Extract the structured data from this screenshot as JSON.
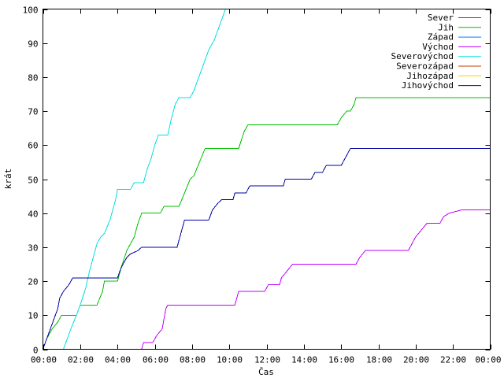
{
  "chart_data": {
    "type": "line",
    "title": "",
    "xlabel": "Čas",
    "ylabel": "krát",
    "xlim": [
      0,
      24
    ],
    "ylim": [
      0,
      100
    ],
    "grid": false,
    "legend_position": "top-right",
    "x_ticks": [
      {
        "value": 0,
        "label": "00:00"
      },
      {
        "value": 2,
        "label": "02:00"
      },
      {
        "value": 4,
        "label": "04:00"
      },
      {
        "value": 6,
        "label": "06:00"
      },
      {
        "value": 8,
        "label": "08:00"
      },
      {
        "value": 10,
        "label": "10:00"
      },
      {
        "value": 12,
        "label": "12:00"
      },
      {
        "value": 14,
        "label": "14:00"
      },
      {
        "value": 16,
        "label": "16:00"
      },
      {
        "value": 18,
        "label": "18:00"
      },
      {
        "value": 20,
        "label": "20:00"
      },
      {
        "value": 22,
        "label": "22:00"
      },
      {
        "value": 24,
        "label": "00:00"
      }
    ],
    "y_ticks": [
      0,
      10,
      20,
      30,
      40,
      50,
      60,
      70,
      80,
      90,
      100
    ],
    "series": [
      {
        "name": "Sever",
        "color": "#ff0000",
        "points": []
      },
      {
        "name": "Jih",
        "color": "#00c000",
        "points": [
          [
            0.0,
            0
          ],
          [
            0.2,
            3
          ],
          [
            0.5,
            6
          ],
          [
            0.8,
            8
          ],
          [
            1.0,
            10
          ],
          [
            1.8,
            10
          ],
          [
            2.0,
            13
          ],
          [
            2.9,
            13
          ],
          [
            3.2,
            17
          ],
          [
            3.3,
            20
          ],
          [
            4.0,
            20
          ],
          [
            4.2,
            24
          ],
          [
            4.5,
            29
          ],
          [
            4.9,
            33
          ],
          [
            5.1,
            37
          ],
          [
            5.3,
            40
          ],
          [
            6.3,
            40
          ],
          [
            6.5,
            42
          ],
          [
            7.3,
            42
          ],
          [
            7.6,
            46
          ],
          [
            7.9,
            50
          ],
          [
            8.1,
            51
          ],
          [
            8.4,
            55
          ],
          [
            8.7,
            59
          ],
          [
            10.5,
            59
          ],
          [
            10.8,
            64
          ],
          [
            11.0,
            66
          ],
          [
            15.8,
            66
          ],
          [
            16.0,
            68
          ],
          [
            16.3,
            70
          ],
          [
            16.5,
            70
          ],
          [
            16.7,
            72
          ],
          [
            16.8,
            74
          ],
          [
            24.0,
            74
          ]
        ]
      },
      {
        "name": "Západ",
        "color": "#0080ff",
        "points": []
      },
      {
        "name": "Východ",
        "color": "#c000ff",
        "points": [
          [
            5.3,
            0
          ],
          [
            5.4,
            2
          ],
          [
            5.9,
            2
          ],
          [
            6.1,
            4
          ],
          [
            6.4,
            6
          ],
          [
            6.5,
            9
          ],
          [
            6.6,
            12
          ],
          [
            6.7,
            13
          ],
          [
            10.3,
            13
          ],
          [
            10.5,
            17
          ],
          [
            11.9,
            17
          ],
          [
            12.1,
            19
          ],
          [
            12.7,
            19
          ],
          [
            12.8,
            21
          ],
          [
            13.1,
            23
          ],
          [
            13.4,
            25
          ],
          [
            16.8,
            25
          ],
          [
            17.0,
            27
          ],
          [
            17.3,
            29
          ],
          [
            19.6,
            29
          ],
          [
            19.8,
            31
          ],
          [
            20.0,
            33
          ],
          [
            20.3,
            35
          ],
          [
            20.6,
            37
          ],
          [
            21.3,
            37
          ],
          [
            21.5,
            39
          ],
          [
            21.8,
            40
          ],
          [
            22.5,
            41
          ],
          [
            24.0,
            41
          ]
        ]
      },
      {
        "name": "Severovýchod",
        "color": "#00e0e0",
        "points": [
          [
            1.1,
            0
          ],
          [
            1.3,
            3
          ],
          [
            1.5,
            6
          ],
          [
            1.8,
            10
          ],
          [
            2.0,
            13
          ],
          [
            2.3,
            18
          ],
          [
            2.5,
            23
          ],
          [
            2.7,
            27
          ],
          [
            2.9,
            31
          ],
          [
            3.1,
            33
          ],
          [
            3.3,
            34
          ],
          [
            3.6,
            38
          ],
          [
            3.9,
            44
          ],
          [
            4.0,
            47
          ],
          [
            4.7,
            47
          ],
          [
            4.9,
            49
          ],
          [
            5.4,
            49
          ],
          [
            5.6,
            53
          ],
          [
            5.8,
            56
          ],
          [
            6.0,
            60
          ],
          [
            6.2,
            63
          ],
          [
            6.7,
            63
          ],
          [
            6.9,
            68
          ],
          [
            7.1,
            72
          ],
          [
            7.3,
            74
          ],
          [
            7.9,
            74
          ],
          [
            8.1,
            76
          ],
          [
            8.3,
            79
          ],
          [
            8.5,
            82
          ],
          [
            8.7,
            85
          ],
          [
            8.9,
            88
          ],
          [
            9.2,
            91
          ],
          [
            9.4,
            94
          ],
          [
            9.6,
            97
          ],
          [
            9.8,
            100
          ]
        ]
      },
      {
        "name": "Severozápad",
        "color": "#c04000",
        "points": []
      },
      {
        "name": "Jihozápad",
        "color": "#ffd000",
        "points": []
      },
      {
        "name": "Jihovýchod",
        "color": "#0000a0",
        "points": [
          [
            0.0,
            0
          ],
          [
            0.2,
            3
          ],
          [
            0.4,
            6
          ],
          [
            0.6,
            9
          ],
          [
            0.8,
            12
          ],
          [
            0.9,
            15
          ],
          [
            1.1,
            17
          ],
          [
            1.4,
            19
          ],
          [
            1.6,
            21
          ],
          [
            4.0,
            21
          ],
          [
            4.2,
            24
          ],
          [
            4.5,
            27
          ],
          [
            4.7,
            28
          ],
          [
            5.1,
            29
          ],
          [
            5.3,
            30
          ],
          [
            7.2,
            30
          ],
          [
            7.4,
            34
          ],
          [
            7.6,
            38
          ],
          [
            8.9,
            38
          ],
          [
            9.1,
            41
          ],
          [
            9.4,
            43
          ],
          [
            9.6,
            44
          ],
          [
            10.2,
            44
          ],
          [
            10.3,
            46
          ],
          [
            10.9,
            46
          ],
          [
            11.1,
            48
          ],
          [
            12.9,
            48
          ],
          [
            13.0,
            50
          ],
          [
            14.4,
            50
          ],
          [
            14.6,
            52
          ],
          [
            15.0,
            52
          ],
          [
            15.2,
            54
          ],
          [
            16.0,
            54
          ],
          [
            16.2,
            56
          ],
          [
            16.4,
            58
          ],
          [
            16.5,
            59
          ],
          [
            24.0,
            59
          ]
        ]
      }
    ]
  }
}
